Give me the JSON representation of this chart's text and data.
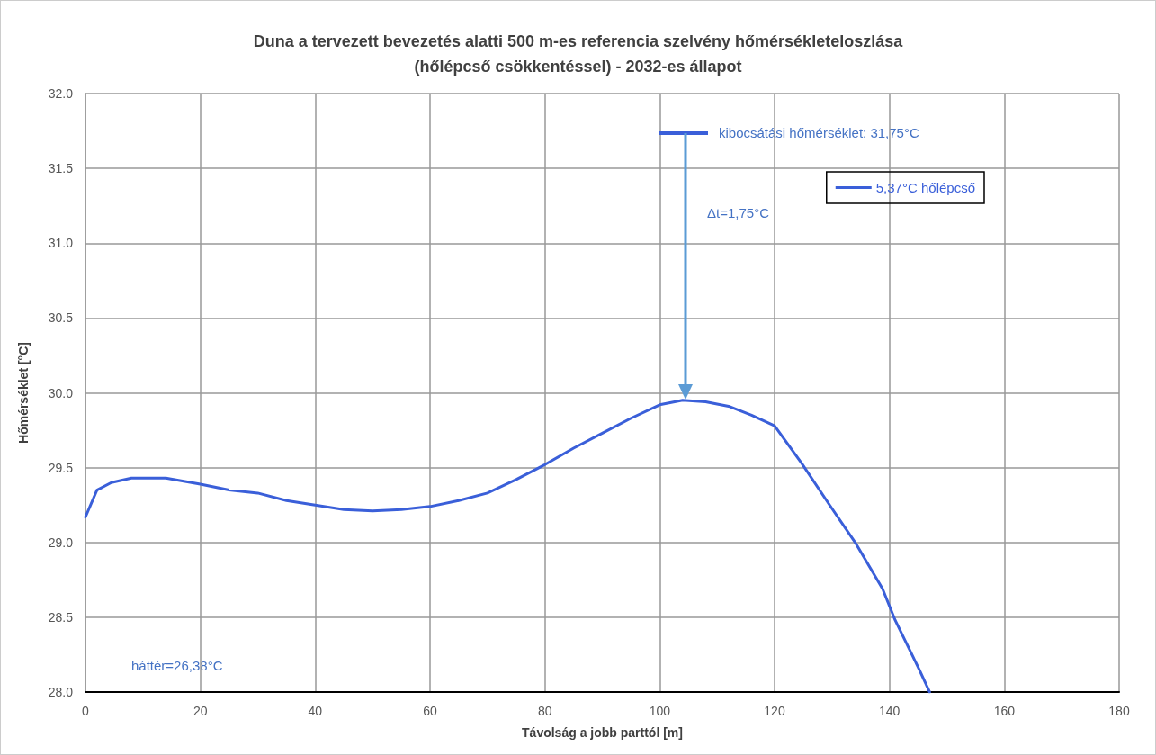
{
  "chart_data": {
    "type": "line",
    "title": "Duna a tervezett bevezetés alatti 500 m-es referencia szelvény hőmérsékleteloszlása\n(hőlépcső csökkentéssel) - 2032-es állapot",
    "xlabel": "Távolság a jobb parttól [m]",
    "ylabel": "Hőmérséklet [°C]",
    "x": [
      0,
      2,
      4.5,
      8,
      14,
      20,
      25,
      30,
      35,
      40,
      45,
      50,
      55,
      60,
      65,
      70,
      75,
      80,
      85,
      90,
      95,
      100,
      104,
      108,
      112,
      116,
      120,
      124.7,
      129.4,
      134.2,
      138.8,
      141,
      145.2,
      147
    ],
    "series": [
      {
        "name": "5,37°C hőlépcső",
        "color": "#3a5fd9",
        "values": [
          29.17,
          29.35,
          29.4,
          29.43,
          29.43,
          29.39,
          29.35,
          29.33,
          29.28,
          29.25,
          29.22,
          29.21,
          29.22,
          29.24,
          29.28,
          29.33,
          29.42,
          29.52,
          29.63,
          29.73,
          29.83,
          29.92,
          29.95,
          29.94,
          29.91,
          29.85,
          29.78,
          29.53,
          29.26,
          28.99,
          28.69,
          28.48,
          28.15,
          28.0
        ]
      }
    ],
    "xlim": [
      0,
      180
    ],
    "xticks": [
      0,
      20,
      40,
      60,
      80,
      100,
      120,
      140,
      160,
      180
    ],
    "ylim": [
      28,
      32
    ],
    "yticks": [
      {
        "value": 28,
        "label": "28.0"
      },
      {
        "value": 28.5,
        "label": "28.5"
      },
      {
        "value": 29,
        "label": "29.0"
      },
      {
        "value": 29.5,
        "label": "29.5"
      },
      {
        "value": 30,
        "label": "30.0"
      },
      {
        "value": 30.5,
        "label": "30.5"
      },
      {
        "value": 31,
        "label": "31.0"
      },
      {
        "value": 31.5,
        "label": "31.5"
      },
      {
        "value": 32,
        "label": "32.0"
      }
    ],
    "annotations": [
      "kibocsátási hőmérséklet: 31,75°C",
      "Δt=1,75°C",
      "háttér=26,38°C"
    ],
    "grid": true,
    "legend": "top right",
    "marker": "none",
    "line_style": "solid"
  }
}
